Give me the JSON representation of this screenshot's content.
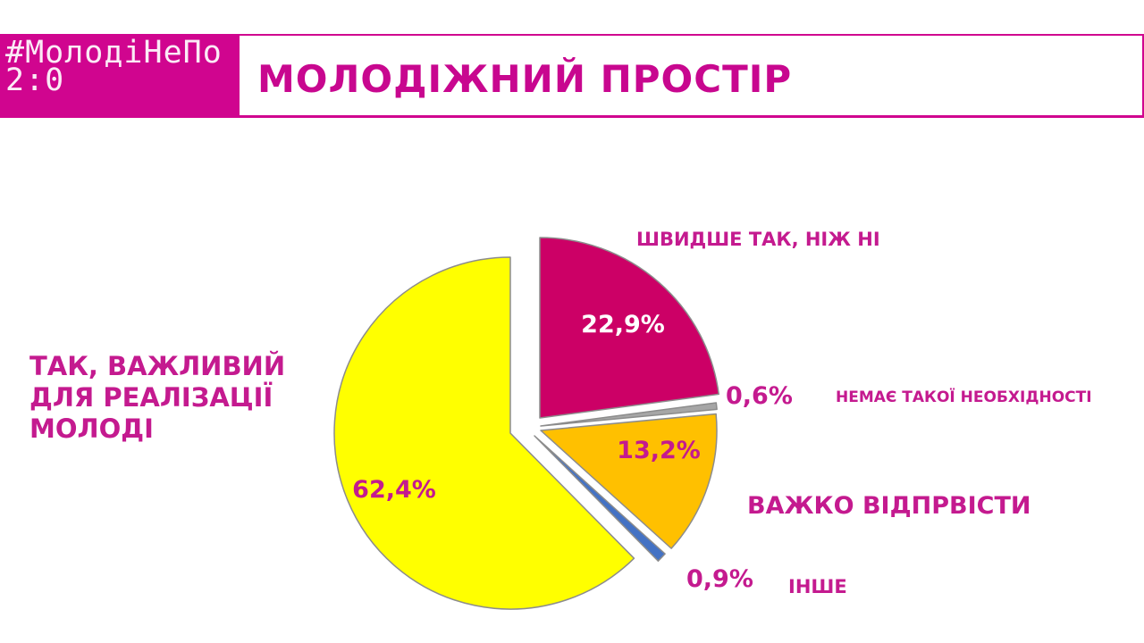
{
  "header": {
    "logo_text": "#МолодіНеПо 2:0",
    "title": "МОЛОДІЖНИЙ ПРОСТІР"
  },
  "colors": {
    "brand": "#d0058f",
    "title_text": "#c8078f",
    "label_text": "#c41a8f"
  },
  "chart_data": {
    "type": "pie",
    "title": "",
    "slices": [
      {
        "category": "ШВИДШЕ ТАК, НІЖ НІ",
        "value": 22.9,
        "value_label": "22,9%",
        "color": "#cc0066"
      },
      {
        "category": "НЕМАЄ ТАКОЇ НЕОБХІДНОСТІ",
        "value": 0.6,
        "value_label": "0,6%",
        "color": "#a6a6a6"
      },
      {
        "category": "ВАЖКО ВІДПРВІСТИ",
        "value": 13.2,
        "value_label": "13,2%",
        "color": "#ffc000"
      },
      {
        "category": "ІНШЕ",
        "value": 0.9,
        "value_label": "0,9%",
        "color": "#4472c4"
      },
      {
        "category": "ТАК, ВАЖЛИВИЙ ДЛЯ РЕАЛІЗАЦІЇ МОЛОДІ",
        "value": 62.4,
        "value_label": "62,4%",
        "color": "#ffff00"
      }
    ],
    "start_angle_deg": 0,
    "direction": "clockwise",
    "exploded": true,
    "legend": "none"
  }
}
